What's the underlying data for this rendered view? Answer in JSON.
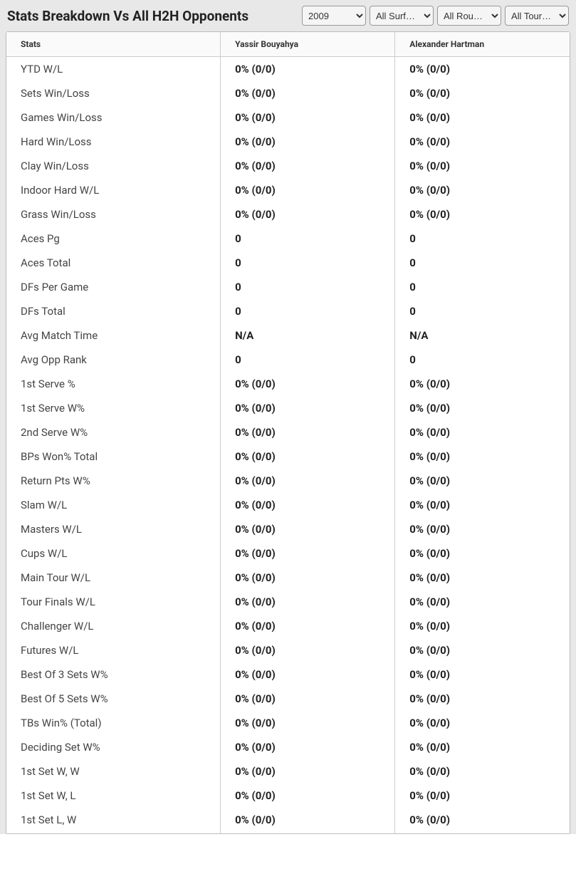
{
  "header": {
    "title": "Stats Breakdown Vs All H2H Opponents",
    "filters": {
      "year": "2009",
      "surface": "All Surf…",
      "round": "All Rou…",
      "tour": "All Tour…"
    }
  },
  "table": {
    "columns": [
      "Stats",
      "Yassir Bouyahya",
      "Alexander Hartman"
    ],
    "rows": [
      [
        "YTD W/L",
        "0% (0/0)",
        "0% (0/0)"
      ],
      [
        "Sets Win/Loss",
        "0% (0/0)",
        "0% (0/0)"
      ],
      [
        "Games Win/Loss",
        "0% (0/0)",
        "0% (0/0)"
      ],
      [
        "Hard Win/Loss",
        "0% (0/0)",
        "0% (0/0)"
      ],
      [
        "Clay Win/Loss",
        "0% (0/0)",
        "0% (0/0)"
      ],
      [
        "Indoor Hard W/L",
        "0% (0/0)",
        "0% (0/0)"
      ],
      [
        "Grass Win/Loss",
        "0% (0/0)",
        "0% (0/0)"
      ],
      [
        "Aces Pg",
        "0",
        "0"
      ],
      [
        "Aces Total",
        "0",
        "0"
      ],
      [
        "DFs Per Game",
        "0",
        "0"
      ],
      [
        "DFs Total",
        "0",
        "0"
      ],
      [
        "Avg Match Time",
        "N/A",
        "N/A"
      ],
      [
        "Avg Opp Rank",
        "0",
        "0"
      ],
      [
        "1st Serve %",
        "0% (0/0)",
        "0% (0/0)"
      ],
      [
        "1st Serve W%",
        "0% (0/0)",
        "0% (0/0)"
      ],
      [
        "2nd Serve W%",
        "0% (0/0)",
        "0% (0/0)"
      ],
      [
        "BPs Won% Total",
        "0% (0/0)",
        "0% (0/0)"
      ],
      [
        "Return Pts W%",
        "0% (0/0)",
        "0% (0/0)"
      ],
      [
        "Slam W/L",
        "0% (0/0)",
        "0% (0/0)"
      ],
      [
        "Masters W/L",
        "0% (0/0)",
        "0% (0/0)"
      ],
      [
        "Cups W/L",
        "0% (0/0)",
        "0% (0/0)"
      ],
      [
        "Main Tour W/L",
        "0% (0/0)",
        "0% (0/0)"
      ],
      [
        "Tour Finals W/L",
        "0% (0/0)",
        "0% (0/0)"
      ],
      [
        "Challenger W/L",
        "0% (0/0)",
        "0% (0/0)"
      ],
      [
        "Futures W/L",
        "0% (0/0)",
        "0% (0/0)"
      ],
      [
        "Best Of 3 Sets W%",
        "0% (0/0)",
        "0% (0/0)"
      ],
      [
        "Best Of 5 Sets W%",
        "0% (0/0)",
        "0% (0/0)"
      ],
      [
        "TBs Win% (Total)",
        "0% (0/0)",
        "0% (0/0)"
      ],
      [
        "Deciding Set W%",
        "0% (0/0)",
        "0% (0/0)"
      ],
      [
        "1st Set W, W",
        "0% (0/0)",
        "0% (0/0)"
      ],
      [
        "1st Set W, L",
        "0% (0/0)",
        "0% (0/0)"
      ],
      [
        "1st Set L, W",
        "0% (0/0)",
        "0% (0/0)"
      ]
    ]
  },
  "styles": {
    "header_bg": "#e8e8e8",
    "table_border": "#bbbbbb",
    "cell_border": "#cccccc",
    "title_fontsize": 19,
    "header_fontsize": 12,
    "cell_fontsize": 15
  }
}
